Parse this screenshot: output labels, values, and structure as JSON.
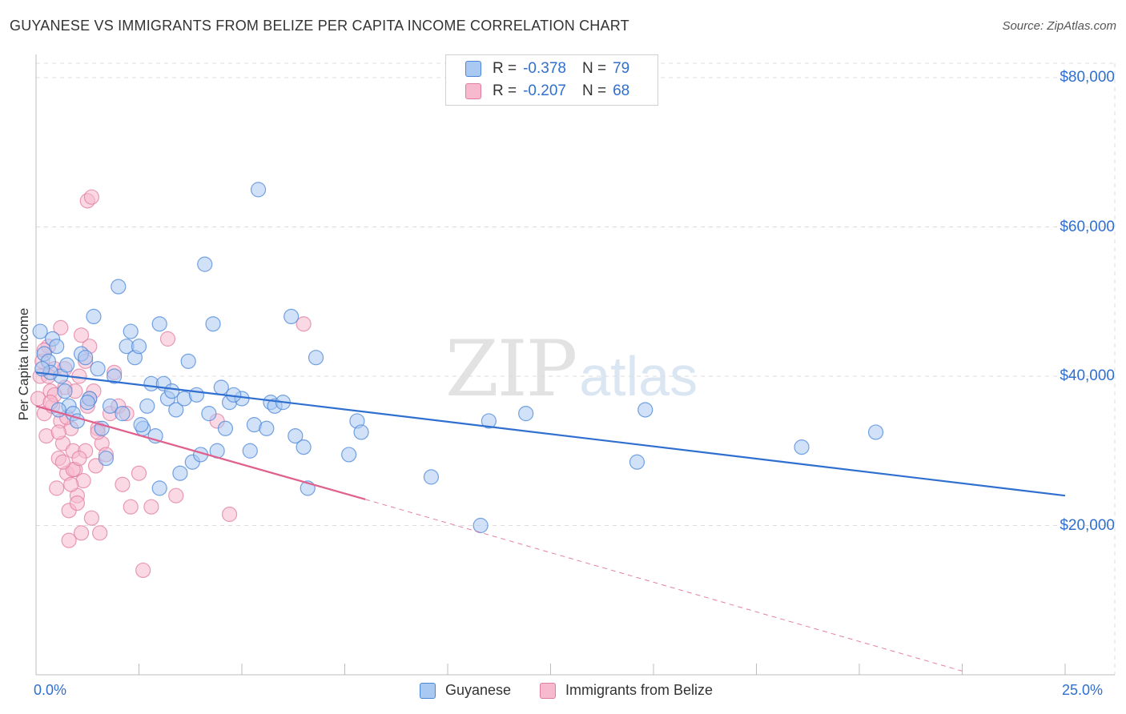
{
  "title": "GUYANESE VS IMMIGRANTS FROM BELIZE PER CAPITA INCOME CORRELATION CHART",
  "source": "Source: ZipAtlas.com",
  "watermark": {
    "zip": "ZIP",
    "atlas": "atlas"
  },
  "colors": {
    "guyanese_fill": "#a9c8f2",
    "guyanese_stroke": "#4a86d8",
    "guyanese_line": "#2f6fd0",
    "belize_fill": "#f7b9cd",
    "belize_stroke": "#e07ca0",
    "belize_line": "#e0608e",
    "axis_text": "#2f6fd0",
    "grid": "#dcdcdc"
  },
  "legend": {
    "rows": [
      {
        "r_label": "R =",
        "r_value": "-0.378",
        "n_label": "N =",
        "n_value": "79"
      },
      {
        "r_label": "R =",
        "r_value": "-0.207",
        "n_label": "N =",
        "n_value": "68"
      }
    ]
  },
  "chart_data": {
    "type": "scatter",
    "title": "GUYANESE VS IMMIGRANTS FROM BELIZE PER CAPITA INCOME CORRELATION CHART",
    "xlabel": "",
    "ylabel": "Per Capita Income",
    "xlim": [
      0,
      25
    ],
    "ylim": [
      0,
      80000
    ],
    "x_tick_labels": [
      "0.0%",
      "25.0%"
    ],
    "y_ticks": [
      20000,
      40000,
      60000,
      80000
    ],
    "y_tick_labels": [
      "$20,000",
      "$40,000",
      "$60,000",
      "$80,000"
    ],
    "grid": true,
    "legend_position": "top-center",
    "series": [
      {
        "name": "Guyanese",
        "R": -0.378,
        "N": 79,
        "trend": {
          "x0": 0,
          "y0": 40500,
          "x1": 25,
          "y1": 24000
        },
        "points": [
          [
            0.1,
            46000
          ],
          [
            0.2,
            43000
          ],
          [
            0.3,
            42000
          ],
          [
            0.4,
            45000
          ],
          [
            0.5,
            44000
          ],
          [
            0.6,
            40000
          ],
          [
            0.7,
            38000
          ],
          [
            0.8,
            36000
          ],
          [
            0.9,
            35000
          ],
          [
            1.0,
            34000
          ],
          [
            1.1,
            43000
          ],
          [
            1.2,
            42500
          ],
          [
            1.3,
            37000
          ],
          [
            1.4,
            48000
          ],
          [
            1.5,
            41000
          ],
          [
            1.6,
            33000
          ],
          [
            1.7,
            29000
          ],
          [
            1.8,
            36000
          ],
          [
            1.9,
            40000
          ],
          [
            2.0,
            52000
          ],
          [
            2.1,
            35000
          ],
          [
            2.2,
            44000
          ],
          [
            2.3,
            46000
          ],
          [
            2.4,
            42500
          ],
          [
            2.5,
            44000
          ],
          [
            2.6,
            33000
          ],
          [
            2.7,
            36000
          ],
          [
            2.8,
            39000
          ],
          [
            2.9,
            32000
          ],
          [
            3.0,
            25000
          ],
          [
            3.0,
            47000
          ],
          [
            3.1,
            39000
          ],
          [
            3.2,
            37000
          ],
          [
            3.3,
            38000
          ],
          [
            3.4,
            35500
          ],
          [
            3.5,
            27000
          ],
          [
            3.6,
            37000
          ],
          [
            3.7,
            42000
          ],
          [
            3.8,
            28500
          ],
          [
            3.9,
            37500
          ],
          [
            4.0,
            29500
          ],
          [
            4.1,
            55000
          ],
          [
            4.2,
            35000
          ],
          [
            4.3,
            47000
          ],
          [
            4.4,
            30000
          ],
          [
            4.5,
            38500
          ],
          [
            4.6,
            33000
          ],
          [
            4.7,
            36500
          ],
          [
            5.0,
            37000
          ],
          [
            5.2,
            30000
          ],
          [
            5.3,
            33500
          ],
          [
            5.4,
            65000
          ],
          [
            5.6,
            33000
          ],
          [
            5.7,
            36500
          ],
          [
            5.8,
            36000
          ],
          [
            6.0,
            36500
          ],
          [
            6.2,
            48000
          ],
          [
            6.3,
            32000
          ],
          [
            6.5,
            30500
          ],
          [
            6.6,
            25000
          ],
          [
            6.8,
            42500
          ],
          [
            7.6,
            29500
          ],
          [
            7.8,
            34000
          ],
          [
            7.9,
            32500
          ],
          [
            9.6,
            26500
          ],
          [
            10.8,
            20000
          ],
          [
            11.0,
            34000
          ],
          [
            11.9,
            35000
          ],
          [
            14.6,
            28500
          ],
          [
            14.8,
            35500
          ],
          [
            18.6,
            30500
          ],
          [
            20.4,
            32500
          ],
          [
            0.35,
            40500
          ],
          [
            0.55,
            35500
          ],
          [
            0.75,
            41500
          ],
          [
            1.25,
            36500
          ],
          [
            2.55,
            33500
          ],
          [
            4.8,
            37500
          ],
          [
            0.15,
            41000
          ]
        ]
      },
      {
        "name": "Immigrants from Belize",
        "R": -0.207,
        "N": 68,
        "trend": {
          "x0": 0,
          "y0": 36000,
          "x1": 8.0,
          "y1": 23500
        },
        "trend_extension": {
          "x0": 8.0,
          "y0": 23500,
          "x1": 22.5,
          "y1": 500
        },
        "points": [
          [
            0.05,
            37000
          ],
          [
            0.1,
            40000
          ],
          [
            0.15,
            42000
          ],
          [
            0.2,
            35000
          ],
          [
            0.25,
            32000
          ],
          [
            0.3,
            44000
          ],
          [
            0.35,
            38000
          ],
          [
            0.4,
            36000
          ],
          [
            0.45,
            41000
          ],
          [
            0.5,
            25000
          ],
          [
            0.55,
            29000
          ],
          [
            0.6,
            34000
          ],
          [
            0.65,
            31000
          ],
          [
            0.7,
            38500
          ],
          [
            0.75,
            27000
          ],
          [
            0.8,
            22000
          ],
          [
            0.85,
            33000
          ],
          [
            0.9,
            30000
          ],
          [
            0.95,
            27500
          ],
          [
            1.0,
            24000
          ],
          [
            1.05,
            40000
          ],
          [
            1.1,
            19000
          ],
          [
            1.15,
            26000
          ],
          [
            1.2,
            42000
          ],
          [
            1.25,
            36000
          ],
          [
            1.3,
            44000
          ],
          [
            1.35,
            21000
          ],
          [
            1.4,
            38000
          ],
          [
            1.45,
            28000
          ],
          [
            1.5,
            33000
          ],
          [
            1.55,
            19000
          ],
          [
            1.6,
            31000
          ],
          [
            1.7,
            29500
          ],
          [
            1.8,
            35000
          ],
          [
            1.9,
            40500
          ],
          [
            2.0,
            36000
          ],
          [
            2.1,
            25500
          ],
          [
            2.2,
            35000
          ],
          [
            2.3,
            22500
          ],
          [
            2.5,
            27000
          ],
          [
            2.6,
            14000
          ],
          [
            2.8,
            22500
          ],
          [
            3.2,
            45000
          ],
          [
            3.4,
            24000
          ],
          [
            4.4,
            34000
          ],
          [
            4.7,
            21500
          ],
          [
            6.5,
            47000
          ],
          [
            1.25,
            63500
          ],
          [
            1.35,
            64000
          ],
          [
            0.3,
            40000
          ],
          [
            0.45,
            37500
          ],
          [
            0.6,
            46500
          ],
          [
            0.7,
            41000
          ],
          [
            0.8,
            18000
          ],
          [
            0.9,
            27500
          ],
          [
            1.0,
            23000
          ],
          [
            1.1,
            45500
          ],
          [
            1.2,
            30000
          ],
          [
            1.3,
            37000
          ],
          [
            1.5,
            32500
          ],
          [
            0.2,
            43500
          ],
          [
            0.35,
            36500
          ],
          [
            0.55,
            32500
          ],
          [
            0.65,
            28500
          ],
          [
            0.75,
            34500
          ],
          [
            0.85,
            25500
          ],
          [
            0.95,
            38000
          ],
          [
            1.05,
            29000
          ]
        ]
      }
    ]
  }
}
